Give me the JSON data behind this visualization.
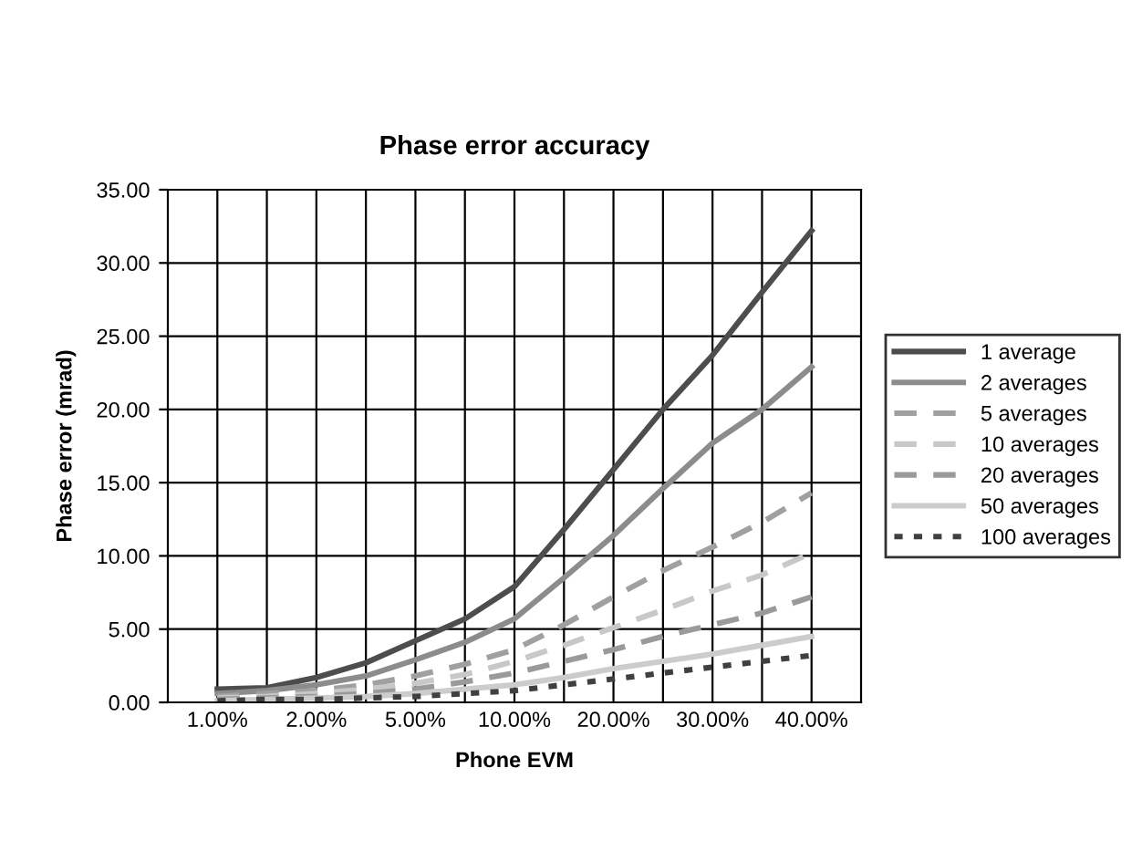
{
  "chart_data": {
    "type": "line",
    "title": "Phase error accuracy",
    "xlabel": "Phone EVM",
    "ylabel": "Phase error (mrad)",
    "categories": [
      "1.00%",
      null,
      "2.00%",
      null,
      "5.00%",
      null,
      "10.00%",
      null,
      "20.00%",
      null,
      "30.00%",
      null,
      "40.00%"
    ],
    "series": [
      {
        "name": "1 average",
        "color": "#4d4d4d",
        "line_style": "solid",
        "values": [
          0.9,
          1.0,
          1.7,
          2.7,
          4.2,
          5.7,
          7.9,
          11.8,
          15.9,
          20.0,
          23.7,
          28.0,
          32.2
        ]
      },
      {
        "name": "2 averages",
        "color": "#8c8c8c",
        "line_style": "solid",
        "values": [
          0.6,
          0.8,
          1.2,
          1.8,
          2.9,
          4.1,
          5.7,
          8.5,
          11.4,
          14.6,
          17.7,
          20.0,
          22.9
        ]
      },
      {
        "name": "5 averages",
        "color": "#a0a0a0",
        "line_style": "dashed",
        "values": [
          0.4,
          0.6,
          0.8,
          1.2,
          1.8,
          2.6,
          3.6,
          5.3,
          7.2,
          9.0,
          10.6,
          12.3,
          14.3
        ]
      },
      {
        "name": "10 averages",
        "color": "#c8c8c8",
        "line_style": "dashed",
        "values": [
          0.3,
          0.4,
          0.6,
          0.9,
          1.3,
          1.9,
          2.8,
          3.9,
          5.1,
          6.3,
          7.6,
          8.7,
          10.2
        ]
      },
      {
        "name": "20 averages",
        "color": "#9a9a9a",
        "line_style": "dashed",
        "values": [
          0.2,
          0.3,
          0.4,
          0.6,
          0.9,
          1.4,
          2.0,
          2.8,
          3.6,
          4.5,
          5.3,
          6.1,
          7.2
        ]
      },
      {
        "name": "50 averages",
        "color": "#cccccc",
        "line_style": "solid",
        "values": [
          0.1,
          0.2,
          0.3,
          0.4,
          0.6,
          0.9,
          1.2,
          1.7,
          2.3,
          2.8,
          3.3,
          3.9,
          4.5
        ]
      },
      {
        "name": "100 averages",
        "color": "#404040",
        "line_style": "dotted",
        "values": [
          0.1,
          0.2,
          0.2,
          0.3,
          0.4,
          0.6,
          0.8,
          1.2,
          1.6,
          2.0,
          2.4,
          2.8,
          3.2
        ]
      }
    ],
    "ylim": [
      0,
      35
    ],
    "yticks": [
      {
        "value": 0,
        "label": "0.00"
      },
      {
        "value": 5,
        "label": "5.00"
      },
      {
        "value": 10,
        "label": "10.00"
      },
      {
        "value": 15,
        "label": "15.00"
      },
      {
        "value": 20,
        "label": "20.00"
      },
      {
        "value": 25,
        "label": "25.00"
      },
      {
        "value": 30,
        "label": "30.00"
      },
      {
        "value": 35,
        "label": "35.00"
      }
    ],
    "grid": true,
    "legend": "right",
    "marker": "none"
  }
}
